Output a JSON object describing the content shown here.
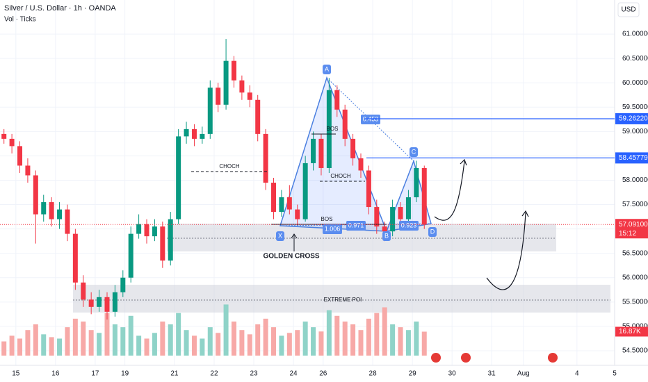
{
  "chart_data": {
    "type": "candlestick",
    "title": "Silver / U.S. Dollar · 1h · OANDA",
    "indicator": "Vol · Ticks",
    "currency": "USD",
    "grid": true,
    "xlim": [
      0,
      15.5
    ],
    "xticks": [
      {
        "value": 0.4,
        "label": "15"
      },
      {
        "value": 1.4,
        "label": "16"
      },
      {
        "value": 2.4,
        "label": "17"
      },
      {
        "value": 3.15,
        "label": "19"
      },
      {
        "value": 4.4,
        "label": "21"
      },
      {
        "value": 5.4,
        "label": "22"
      },
      {
        "value": 6.4,
        "label": "23"
      },
      {
        "value": 7.4,
        "label": "24"
      },
      {
        "value": 8.15,
        "label": "26"
      },
      {
        "value": 9.4,
        "label": "28"
      },
      {
        "value": 10.4,
        "label": "29"
      },
      {
        "value": 11.4,
        "label": "30"
      },
      {
        "value": 12.4,
        "label": "31"
      },
      {
        "value": 13.2,
        "label": "Aug"
      },
      {
        "value": 14.55,
        "label": "4"
      },
      {
        "value": 15.5,
        "label": "5"
      }
    ],
    "ylim": [
      54.2,
      61.7
    ],
    "yticks": [
      {
        "value": 54.5,
        "label": "54.50000"
      },
      {
        "value": 55,
        "label": "55.00000"
      },
      {
        "value": 55.5,
        "label": "55.50000"
      },
      {
        "value": 56,
        "label": "56.00000"
      },
      {
        "value": 56.5,
        "label": "56.50000"
      },
      {
        "value": 57,
        "label": "57.00000"
      },
      {
        "value": 57.5,
        "label": "57.50000"
      },
      {
        "value": 58,
        "label": "58.00000"
      },
      {
        "value": 58.5,
        "label": "58.50000"
      },
      {
        "value": 59,
        "label": "59.00000"
      },
      {
        "value": 59.5,
        "label": "59.50000"
      },
      {
        "value": 60,
        "label": "60.00000"
      },
      {
        "value": 60.5,
        "label": "60.50000"
      },
      {
        "value": 61,
        "label": "61.00000"
      }
    ],
    "x": [
      0.1,
      0.3,
      0.5,
      0.7,
      0.9,
      1.1,
      1.3,
      1.5,
      1.7,
      1.9,
      2.1,
      2.3,
      2.5,
      2.7,
      2.9,
      3.1,
      3.3,
      3.5,
      3.7,
      3.9,
      4.1,
      4.3,
      4.5,
      4.7,
      4.9,
      5.1,
      5.3,
      5.5,
      5.7,
      5.9,
      6.1,
      6.3,
      6.5,
      6.7,
      6.9,
      7.1,
      7.3,
      7.5,
      7.7,
      7.9,
      8.1,
      8.3,
      8.5,
      8.7,
      8.9,
      9.1,
      9.3,
      9.5,
      9.7,
      9.9,
      10.1,
      10.3,
      10.5,
      10.7
    ],
    "open": [
      58.95,
      58.85,
      58.7,
      58.3,
      58.1,
      57.3,
      57.55,
      57.2,
      57.4,
      56.9,
      55.9,
      55.55,
      55.4,
      55.6,
      55.3,
      55.7,
      56.0,
      56.9,
      57.1,
      56.85,
      57.05,
      56.35,
      57.2,
      58.9,
      59.05,
      58.85,
      58.95,
      59.9,
      59.55,
      60.45,
      60.05,
      59.8,
      59.65,
      58.95,
      57.95,
      57.35,
      57.65,
      57.4,
      57.2,
      58.35,
      58.85,
      58.25,
      59.85,
      59.45,
      58.85,
      58.45,
      58.2,
      57.45,
      57.05,
      56.95,
      57.45,
      57.2,
      57.65,
      58.25
    ],
    "high": [
      59.05,
      58.95,
      58.8,
      58.45,
      58.2,
      57.7,
      57.65,
      57.55,
      57.5,
      57.0,
      56.05,
      55.7,
      55.75,
      55.7,
      55.85,
      56.15,
      57.05,
      57.3,
      57.2,
      57.2,
      57.15,
      57.35,
      59.05,
      59.2,
      59.15,
      59.1,
      60.05,
      60.0,
      60.9,
      60.55,
      60.15,
      59.95,
      59.75,
      59.05,
      58.05,
      57.8,
      57.9,
      57.5,
      58.5,
      59.0,
      58.95,
      60.1,
      59.95,
      59.55,
      58.95,
      58.55,
      58.3,
      57.6,
      57.15,
      57.6,
      57.55,
      57.8,
      58.4,
      58.3
    ],
    "low": [
      58.75,
      58.55,
      58.15,
      57.95,
      56.7,
      57.15,
      57.05,
      57.0,
      56.75,
      55.75,
      55.4,
      55.25,
      55.3,
      55.14,
      55.2,
      55.6,
      55.9,
      56.8,
      56.7,
      56.75,
      56.2,
      56.25,
      57.1,
      58.75,
      58.7,
      58.75,
      58.85,
      59.4,
      59.45,
      59.9,
      59.65,
      59.5,
      58.8,
      57.8,
      57.2,
      57.25,
      57.3,
      57.08,
      57.15,
      58.2,
      58.1,
      58.15,
      59.3,
      58.7,
      58.3,
      58.05,
      57.3,
      56.9,
      56.75,
      56.85,
      57.05,
      57.1,
      57.55,
      57.0
    ],
    "close": [
      58.85,
      58.7,
      58.3,
      58.1,
      57.3,
      57.55,
      57.2,
      57.4,
      56.9,
      55.9,
      55.55,
      55.4,
      55.6,
      55.3,
      55.7,
      56.0,
      56.9,
      57.1,
      56.85,
      57.05,
      56.35,
      57.2,
      58.9,
      59.05,
      58.85,
      58.95,
      59.9,
      59.55,
      60.45,
      60.05,
      59.8,
      59.65,
      58.95,
      57.95,
      57.35,
      57.65,
      57.4,
      57.2,
      58.35,
      58.85,
      58.25,
      59.85,
      59.45,
      58.85,
      58.45,
      58.2,
      57.45,
      57.05,
      56.95,
      57.45,
      57.2,
      57.65,
      58.25,
      57.09
    ],
    "up_color": "#089981",
    "down_color": "#f23645",
    "volume": {
      "ylim": [
        0,
        45
      ],
      "up_color": "#8fd3c8",
      "down_color": "#f7a9a7",
      "values": [
        10,
        14,
        12,
        18,
        22,
        15,
        13,
        12,
        20,
        26,
        24,
        18,
        16,
        30,
        22,
        20,
        28,
        14,
        12,
        16,
        24,
        22,
        30,
        18,
        14,
        12,
        20,
        16,
        36,
        24,
        18,
        15,
        22,
        26,
        20,
        14,
        16,
        18,
        24,
        20,
        17,
        32,
        28,
        24,
        22,
        18,
        26,
        30,
        34,
        22,
        20,
        18,
        24,
        16.87
      ]
    },
    "volume_label": {
      "value": 16.87,
      "label": "16.87K"
    },
    "price_levels": [
      {
        "value": 59.2622,
        "label": "59.26220"
      },
      {
        "value": 58.45779,
        "label": "58.45779"
      }
    ],
    "last_price": {
      "value": 57.091,
      "label": "57.09100"
    },
    "countdown": "15:12",
    "annotations": [
      "CHOCH",
      "BOS",
      "CHOCH",
      "BOS",
      "GOLDEN CROSS",
      "EXTREME POI"
    ],
    "pattern_points": [
      "X",
      "A",
      "B",
      "C",
      "D"
    ],
    "ratios": [
      0.453,
      1.006,
      0.971,
      0.923
    ]
  }
}
